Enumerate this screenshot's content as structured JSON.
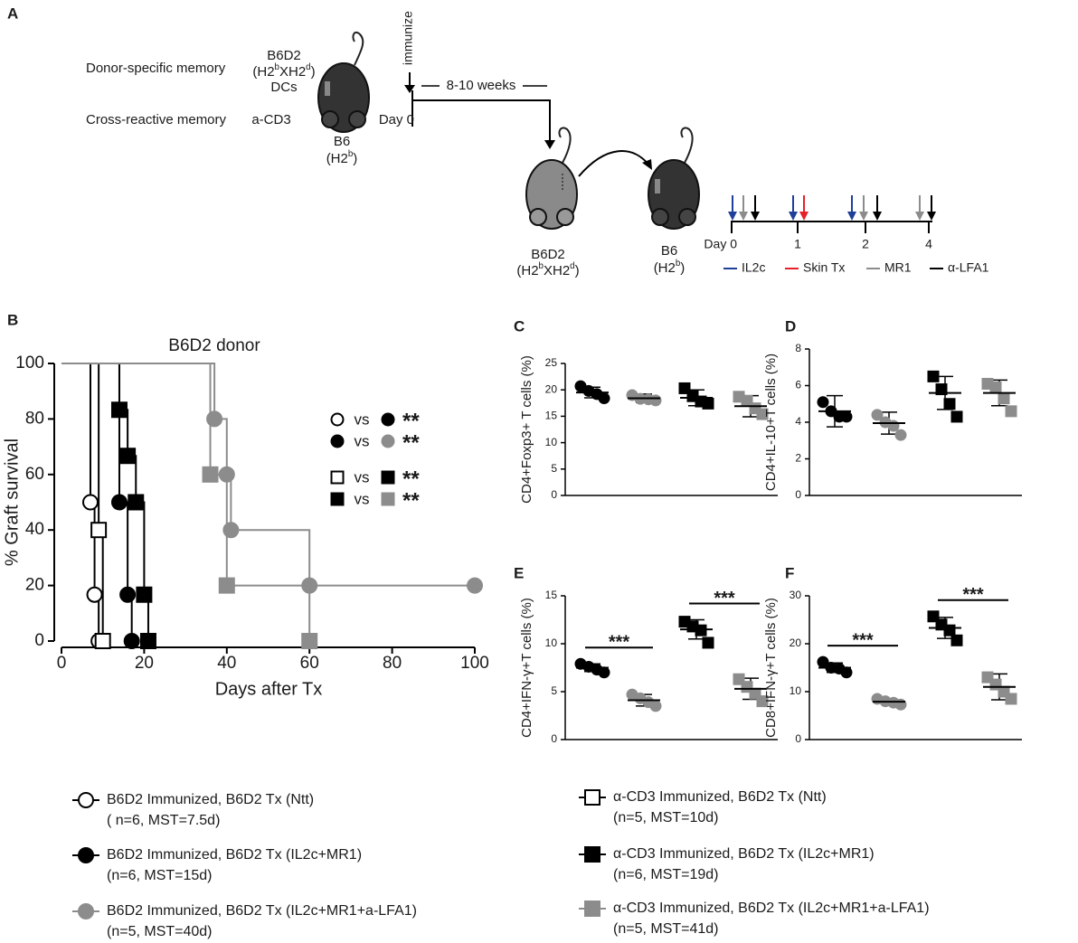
{
  "panel_a": {
    "letter": "A",
    "row_labels": [
      "Donor-specific memory",
      "Cross-reactive memory"
    ],
    "donor_name": "B6D2",
    "donor_genotype": [
      "(H2",
      "b",
      "XH2",
      "d",
      ")"
    ],
    "donor_cells": "DCs",
    "cd3": "a-CD3",
    "host_name": "B6",
    "host_genotype": [
      "(H2",
      "b",
      ")"
    ],
    "immunize": "immunize",
    "interval": "8-10 weeks",
    "day0": "Day 0",
    "graft_name": "B6D2",
    "graft_genotype": [
      "(H2",
      "b",
      "XH2",
      "d",
      ")"
    ],
    "recipient_name": "B6",
    "recipient_genotype": [
      "(H2",
      "b",
      ")"
    ],
    "timeline_labels": [
      "Day 0",
      "1",
      "2",
      "4"
    ],
    "treatments": [
      {
        "label": "IL2c",
        "color": "#1f3f99"
      },
      {
        "label": "Skin Tx",
        "color": "#e8202a"
      },
      {
        "label": "MR1",
        "color": "#8c8c8c"
      },
      {
        "label": "α-LFA1",
        "color": "#000000"
      }
    ]
  },
  "chart_data": [
    {
      "type": "survival",
      "panel": "B",
      "title": "B6D2 donor",
      "xlabel": "Days after Tx",
      "ylabel": "% Graft survival",
      "xlim": [
        0,
        100
      ],
      "xticks": [
        0,
        20,
        40,
        60,
        80,
        100
      ],
      "ylim": [
        0,
        100
      ],
      "yticks": [
        0,
        20,
        40,
        60,
        80,
        100
      ],
      "series": [
        {
          "name": "B6D2 Immunized, B6D2 Tx (Ntt)",
          "detail": "( n=6, MST=7.5d)",
          "color": "#000000",
          "marker": "circle",
          "filled": false,
          "x": [
            0,
            7,
            8,
            9
          ],
          "values": [
            100,
            50,
            16.7,
            0
          ]
        },
        {
          "name": "B6D2 Immunized, B6D2 Tx (IL2c+MR1)",
          "detail": "(n=6, MST=15d)",
          "color": "#000000",
          "marker": "circle",
          "filled": true,
          "x": [
            0,
            14,
            16,
            17
          ],
          "values": [
            100,
            50,
            16.7,
            0
          ]
        },
        {
          "name": "B6D2 Immunized, B6D2 Tx (IL2c+MR1+a-LFA1)",
          "detail": "(n=5, MST=40d)",
          "color": "#8c8c8c",
          "marker": "circle",
          "filled": true,
          "x": [
            0,
            37,
            40,
            41,
            60,
            100
          ],
          "values": [
            100,
            80,
            60,
            40,
            20,
            20
          ]
        },
        {
          "name": "α-CD3 Immunized, B6D2 Tx (Ntt)",
          "detail": "(n=5, MST=10d)",
          "color": "#000000",
          "marker": "square",
          "filled": false,
          "x": [
            0,
            9,
            10
          ],
          "values": [
            100,
            40,
            0
          ]
        },
        {
          "name": "α-CD3 Immunized, B6D2 Tx (IL2c+MR1)",
          "detail": "(n=6, MST=19d)",
          "color": "#000000",
          "marker": "square",
          "filled": true,
          "x": [
            0,
            14,
            16,
            18,
            20,
            21
          ],
          "values": [
            100,
            83.3,
            66.7,
            50,
            16.7,
            0
          ]
        },
        {
          "name": "α-CD3 Immunized, B6D2 Tx (IL2c+MR1+a-LFA1)",
          "detail": "(n=5, MST=41d)",
          "color": "#8c8c8c",
          "marker": "square",
          "filled": true,
          "x": [
            0,
            36,
            40,
            60
          ],
          "values": [
            100,
            60,
            20,
            0
          ]
        }
      ],
      "comparisons": [
        {
          "label": "vs",
          "sig": "**"
        },
        {
          "label": "vs",
          "sig": "**"
        },
        {
          "label": "vs",
          "sig": "**"
        },
        {
          "label": "vs",
          "sig": "**"
        }
      ]
    },
    {
      "type": "dot",
      "panel": "C",
      "ylabel": "CD4+Foxp3+ T cells (%)",
      "ylim": [
        0,
        25
      ],
      "yticks": [
        0,
        5,
        10,
        15,
        20,
        25
      ],
      "groups": [
        {
          "color": "#000000",
          "marker": "circle",
          "points": [
            20.7,
            19.8,
            19.2,
            18.4
          ],
          "mean": 19.5,
          "sd": 1.0
        },
        {
          "color": "#8c8c8c",
          "marker": "circle",
          "points": [
            19.0,
            18.3,
            18.2,
            18.0
          ],
          "mean": 18.4,
          "sd": 0.8
        },
        {
          "color": "#000000",
          "marker": "square",
          "points": [
            20.3,
            18.8,
            17.8,
            17.4
          ],
          "mean": 18.5,
          "sd": 1.5
        },
        {
          "color": "#8c8c8c",
          "marker": "square",
          "points": [
            18.7,
            17.9,
            16.5,
            15.4
          ],
          "mean": 16.9,
          "sd": 2.0
        }
      ],
      "significance": []
    },
    {
      "type": "dot",
      "panel": "D",
      "ylabel": "CD4+IL-10+T cells (%)",
      "ylim": [
        0,
        8
      ],
      "yticks": [
        0,
        2,
        4,
        6,
        8
      ],
      "groups": [
        {
          "color": "#000000",
          "marker": "circle",
          "points": [
            5.1,
            4.6,
            4.3,
            4.3
          ],
          "mean": 4.6,
          "sd": 0.85
        },
        {
          "color": "#8c8c8c",
          "marker": "circle",
          "points": [
            4.4,
            4.0,
            3.8,
            3.3
          ],
          "mean": 3.95,
          "sd": 0.6
        },
        {
          "color": "#000000",
          "marker": "square",
          "points": [
            6.5,
            5.8,
            5.0,
            4.3
          ],
          "mean": 5.6,
          "sd": 0.9
        },
        {
          "color": "#8c8c8c",
          "marker": "square",
          "points": [
            6.1,
            5.9,
            5.3,
            4.6
          ],
          "mean": 5.6,
          "sd": 0.7
        }
      ],
      "significance": []
    },
    {
      "type": "dot",
      "panel": "E",
      "ylabel": "CD4+IFN-γ+T cells (%)",
      "ylim": [
        0,
        15
      ],
      "yticks": [
        0,
        5,
        10,
        15
      ],
      "groups": [
        {
          "color": "#000000",
          "marker": "circle",
          "points": [
            7.9,
            7.6,
            7.3,
            7.0
          ],
          "mean": 7.5,
          "sd": 0.4
        },
        {
          "color": "#8c8c8c",
          "marker": "circle",
          "points": [
            4.7,
            4.3,
            3.9,
            3.5
          ],
          "mean": 4.1,
          "sd": 0.6
        },
        {
          "color": "#000000",
          "marker": "square",
          "points": [
            12.3,
            11.8,
            11.4,
            10.1
          ],
          "mean": 11.5,
          "sd": 1.0
        },
        {
          "color": "#8c8c8c",
          "marker": "square",
          "points": [
            6.3,
            5.5,
            4.8,
            4.0
          ],
          "mean": 5.3,
          "sd": 1.1
        }
      ],
      "significance": [
        {
          "label": "***"
        },
        {
          "label": "***"
        }
      ]
    },
    {
      "type": "dot",
      "panel": "F",
      "ylabel": "CD8+IFN-γ+T cells (%)",
      "ylim": [
        0,
        30
      ],
      "yticks": [
        0,
        10,
        20,
        30
      ],
      "groups": [
        {
          "color": "#000000",
          "marker": "circle",
          "points": [
            16.2,
            15.0,
            14.8,
            14.0
          ],
          "mean": 15.0,
          "sd": 1.0
        },
        {
          "color": "#8c8c8c",
          "marker": "circle",
          "points": [
            8.5,
            8.0,
            7.7,
            7.3
          ],
          "mean": 7.9,
          "sd": 0.5
        },
        {
          "color": "#000000",
          "marker": "square",
          "points": [
            25.7,
            24.0,
            22.8,
            20.7
          ],
          "mean": 23.3,
          "sd": 2.2
        },
        {
          "color": "#8c8c8c",
          "marker": "square",
          "points": [
            13.0,
            11.5,
            10.0,
            8.5
          ],
          "mean": 11.0,
          "sd": 2.7
        }
      ],
      "significance": [
        {
          "label": "***"
        },
        {
          "label": "***"
        }
      ]
    }
  ]
}
